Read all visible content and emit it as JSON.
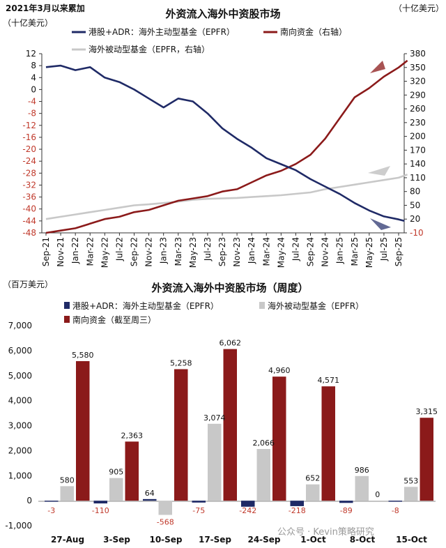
{
  "colors": {
    "navy": "#1F2A66",
    "red": "#8B1A1A",
    "gray": "#C8C8C8",
    "negative_label": "#C0392B"
  },
  "chart_data": [
    {
      "type": "line",
      "corner_label": "2021年3月以来累加",
      "title": "外资流入海外中资股市场",
      "left_unit": "（十亿美元）",
      "right_unit": "（十亿美元）",
      "x_tick_labels": [
        "Sep-21",
        "Nov-21",
        "Jan-22",
        "Mar-22",
        "May-22",
        "Jul-22",
        "Sep-22",
        "Nov-22",
        "Jan-23",
        "Mar-23",
        "May-23",
        "Jul-23",
        "Sep-23",
        "Nov-23",
        "Jan-24",
        "Mar-24",
        "May-24",
        "Jul-24",
        "Sep-24",
        "Nov-24",
        "Jan-25",
        "Mar-25",
        "May-25",
        "Jul-25",
        "Sep-25"
      ],
      "y_left": {
        "min": -48,
        "max": 12,
        "step": 4,
        "ticks": [
          12,
          8,
          4,
          0,
          -4,
          -8,
          -12,
          -16,
          -20,
          -24,
          -28,
          -32,
          -36,
          -40,
          -44,
          -48
        ]
      },
      "y_right": {
        "min": -10,
        "max": 380,
        "step": 30,
        "ticks": [
          380,
          350,
          320,
          290,
          260,
          230,
          200,
          170,
          140,
          110,
          80,
          50,
          20,
          -10
        ]
      },
      "series": [
        {
          "name": "港股+ADR：海外主动型基金（EPFR）",
          "axis": "left",
          "color": "#1F2A66",
          "x_index": [
            0,
            1,
            2,
            3,
            4,
            5,
            6,
            7,
            8,
            9,
            10,
            11,
            12,
            13,
            14,
            15,
            16,
            17,
            18,
            19,
            20,
            21,
            22,
            23,
            24,
            24.4
          ],
          "values": [
            7.5,
            8,
            6.5,
            7.5,
            4,
            2.5,
            0,
            -3,
            -6,
            -3,
            -4,
            -8,
            -13,
            -16.5,
            -19.5,
            -23,
            -25,
            -27,
            -30,
            -32.5,
            -35,
            -38,
            -40.5,
            -42.5,
            -43.5,
            -44
          ]
        },
        {
          "name": "南向资金（右轴）",
          "axis": "right",
          "color": "#8B1A1A",
          "x_index": [
            0,
            1,
            2,
            3,
            4,
            5,
            6,
            7,
            8,
            9,
            10,
            11,
            12,
            13,
            14,
            15,
            16,
            17,
            18,
            19,
            20,
            21,
            22,
            23,
            24,
            24.6
          ],
          "values": [
            -10,
            -5,
            0,
            10,
            20,
            25,
            35,
            40,
            50,
            60,
            65,
            70,
            80,
            85,
            100,
            115,
            125,
            140,
            160,
            195,
            240,
            285,
            305,
            330,
            350,
            365
          ]
        },
        {
          "name": "海外被动型基金（EPFR，右轴）",
          "axis": "right",
          "color": "#C8C8C8",
          "x_index": [
            0,
            1,
            2,
            3,
            4,
            5,
            6,
            7,
            8,
            9,
            10,
            11,
            12,
            13,
            14,
            15,
            16,
            17,
            18,
            19,
            20,
            21,
            22,
            23,
            24,
            24.6
          ],
          "values": [
            20,
            25,
            30,
            35,
            40,
            45,
            50,
            52,
            55,
            58,
            62,
            64,
            65,
            66,
            68,
            70,
            72,
            75,
            78,
            85,
            90,
            95,
            100,
            105,
            110,
            117
          ]
        }
      ]
    },
    {
      "type": "bar",
      "title": "外资流入海外中资股市场（周度）",
      "unit": "（百万美元）",
      "categories": [
        "27-Aug",
        "3-Sep",
        "10-Sep",
        "17-Sep",
        "24-Sep",
        "1-Oct",
        "8-Oct",
        "15-Oct"
      ],
      "ylim": [
        -1000,
        7000
      ],
      "y_ticks": [
        "-1,000",
        "0",
        "1,000",
        "2,000",
        "3,000",
        "4,000",
        "5,000",
        "6,000",
        "7,000"
      ],
      "series": [
        {
          "name": "港股+ADR：海外主动型基金（EPFR）",
          "color": "#1F2A66",
          "values": [
            -3,
            -110,
            64,
            -75,
            -242,
            -218,
            -89,
            -8
          ],
          "labels": [
            "-3",
            "-110",
            "64",
            "-75",
            "-242",
            "-218",
            "-89",
            "-8"
          ]
        },
        {
          "name": "海外被动型基金（EPFR）",
          "color": "#C8C8C8",
          "values": [
            580,
            905,
            -568,
            3074,
            2066,
            652,
            986,
            553
          ],
          "labels": [
            "580",
            "905",
            "-568",
            "3,074",
            "2,066",
            "652",
            "986",
            "553"
          ]
        },
        {
          "name": "南向资金（截至周三）",
          "color": "#8B1A1A",
          "values": [
            5580,
            2363,
            5258,
            6062,
            4960,
            4571,
            0,
            3315
          ],
          "labels": [
            "5,580",
            "2,363",
            "5,258",
            "6,062",
            "4,960",
            "4,571",
            "0",
            "3,315"
          ]
        }
      ]
    }
  ],
  "watermark": "公众号 · Kevin策略研究"
}
